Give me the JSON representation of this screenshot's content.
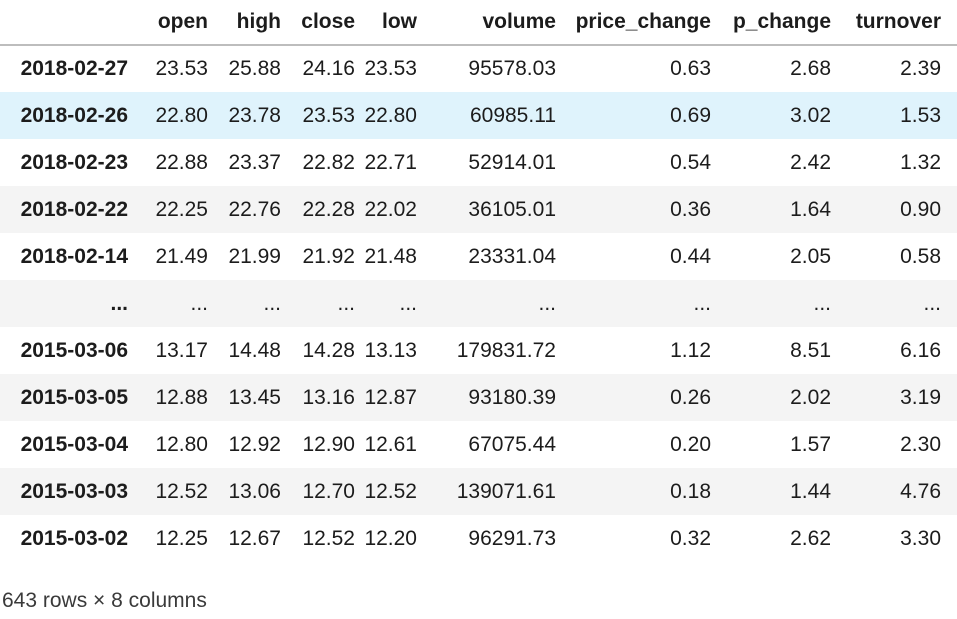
{
  "table": {
    "index_corner_label": "",
    "columns": [
      "open",
      "high",
      "close",
      "low",
      "volume",
      "price_change",
      "p_change",
      "turnover"
    ],
    "rows": [
      {
        "index": "2018-02-27",
        "values": [
          "23.53",
          "25.88",
          "24.16",
          "23.53",
          "95578.03",
          "0.63",
          "2.68",
          "2.39"
        ],
        "highlighted": false
      },
      {
        "index": "2018-02-26",
        "values": [
          "22.80",
          "23.78",
          "23.53",
          "22.80",
          "60985.11",
          "0.69",
          "3.02",
          "1.53"
        ],
        "highlighted": true
      },
      {
        "index": "2018-02-23",
        "values": [
          "22.88",
          "23.37",
          "22.82",
          "22.71",
          "52914.01",
          "0.54",
          "2.42",
          "1.32"
        ],
        "highlighted": false
      },
      {
        "index": "2018-02-22",
        "values": [
          "22.25",
          "22.76",
          "22.28",
          "22.02",
          "36105.01",
          "0.36",
          "1.64",
          "0.90"
        ],
        "highlighted": false
      },
      {
        "index": "2018-02-14",
        "values": [
          "21.49",
          "21.99",
          "21.92",
          "21.48",
          "23331.04",
          "0.44",
          "2.05",
          "0.58"
        ],
        "highlighted": false
      },
      {
        "index": "...",
        "values": [
          "...",
          "...",
          "...",
          "...",
          "...",
          "...",
          "...",
          "..."
        ],
        "highlighted": false
      },
      {
        "index": "2015-03-06",
        "values": [
          "13.17",
          "14.48",
          "14.28",
          "13.13",
          "179831.72",
          "1.12",
          "8.51",
          "6.16"
        ],
        "highlighted": false
      },
      {
        "index": "2015-03-05",
        "values": [
          "12.88",
          "13.45",
          "13.16",
          "12.87",
          "93180.39",
          "0.26",
          "2.02",
          "3.19"
        ],
        "highlighted": false
      },
      {
        "index": "2015-03-04",
        "values": [
          "12.80",
          "12.92",
          "12.90",
          "12.61",
          "67075.44",
          "0.20",
          "1.57",
          "2.30"
        ],
        "highlighted": false
      },
      {
        "index": "2015-03-03",
        "values": [
          "12.52",
          "13.06",
          "12.70",
          "12.52",
          "139071.61",
          "0.18",
          "1.44",
          "4.76"
        ],
        "highlighted": false
      },
      {
        "index": "2015-03-02",
        "values": [
          "12.25",
          "12.67",
          "12.52",
          "12.20",
          "96291.73",
          "0.32",
          "2.62",
          "3.30"
        ],
        "highlighted": false
      }
    ],
    "footer": "643 rows × 8 columns"
  },
  "colors": {
    "text": "#1c1c1c",
    "footer_text": "#3a3a3a",
    "stripe_row_bg": "#f4f4f4",
    "hover_row_bg": "#dff3fc",
    "header_border": "#bdbdbd",
    "page_bg": "#ffffff"
  }
}
